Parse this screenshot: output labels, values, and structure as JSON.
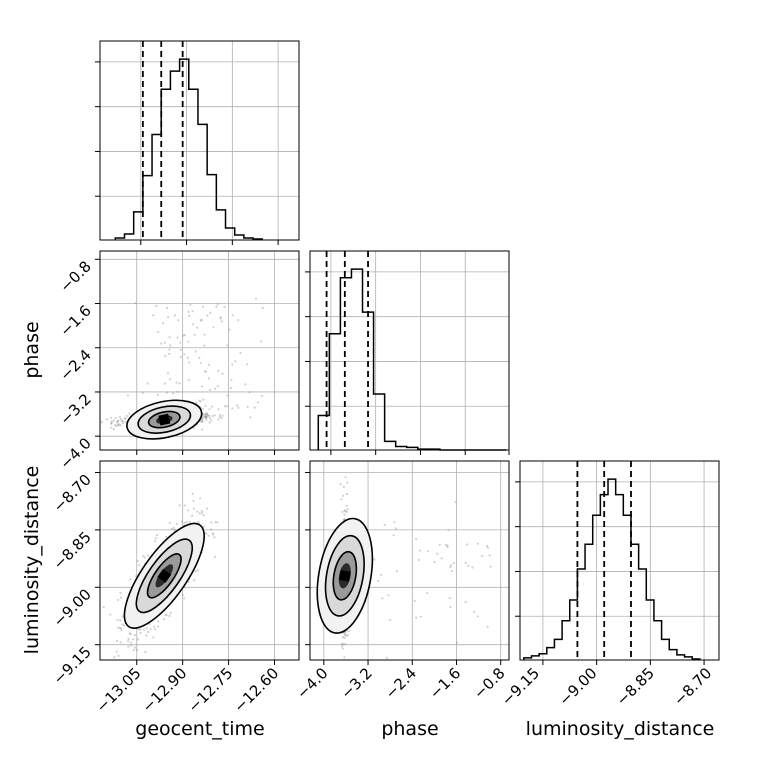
{
  "chart_data": {
    "type": "corner",
    "parameters": [
      "geocent_time",
      "phase",
      "luminosity_distance"
    ],
    "grid": true,
    "histograms": [
      {
        "parameter": "geocent_time",
        "xlim": [
          -13.17,
          -12.52
        ],
        "bin_edges": [
          -13.12,
          -13.09,
          -13.06,
          -13.03,
          -13.0,
          -12.97,
          -12.94,
          -12.91,
          -12.88,
          -12.85,
          -12.82,
          -12.79,
          -12.76,
          -12.73,
          -12.7,
          -12.67,
          -12.64
        ],
        "counts": [
          2,
          6,
          28,
          64,
          105,
          150,
          168,
          180,
          150,
          115,
          65,
          30,
          12,
          5,
          2,
          1
        ],
        "quantiles": [
          -13.03,
          -12.97,
          -12.9
        ]
      },
      {
        "parameter": "phase",
        "xlim": [
          -4.25,
          -0.65
        ],
        "bin_edges": [
          -4.1,
          -3.9,
          -3.7,
          -3.5,
          -3.3,
          -3.1,
          -2.9,
          -2.7,
          -2.5,
          -2.3,
          -2.1,
          -1.9,
          -1.7,
          -1.5,
          -1.3,
          -1.1,
          -0.9,
          -0.7
        ],
        "counts": [
          40,
          135,
          200,
          210,
          160,
          65,
          10,
          4,
          3,
          1,
          1,
          0,
          0,
          0,
          0,
          0,
          0
        ],
        "quantiles": [
          -3.95,
          -3.62,
          -3.2
        ]
      },
      {
        "parameter": "luminosity_distance",
        "xlim": [
          -9.19,
          -8.67
        ],
        "bin_edges": [
          -9.18,
          -9.16,
          -9.14,
          -9.12,
          -9.1,
          -9.08,
          -9.06,
          -9.04,
          -9.02,
          -9.0,
          -8.98,
          -8.96,
          -8.94,
          -8.92,
          -8.9,
          -8.88,
          -8.86,
          -8.84,
          -8.82,
          -8.8,
          -8.78,
          -8.76,
          -8.74,
          -8.72
        ],
        "counts": [
          2,
          4,
          6,
          12,
          20,
          38,
          58,
          88,
          112,
          140,
          160,
          175,
          160,
          140,
          112,
          88,
          58,
          38,
          20,
          10,
          5,
          3,
          1
        ],
        "quantiles": [
          -9.04,
          -8.97,
          -8.9
        ]
      }
    ],
    "pairs": [
      {
        "x": "geocent_time",
        "y": "phase",
        "xlim": [
          -13.17,
          -12.52
        ],
        "ylim": [
          -4.25,
          -0.65
        ],
        "peak": [
          -12.96,
          -3.7
        ],
        "yticks": [
          -4.0,
          -3.2,
          -2.4,
          -1.6,
          -0.8
        ],
        "ytick_labels": [
          "−4.0",
          "−3.2",
          "−2.4",
          "−1.6",
          "−0.8"
        ]
      },
      {
        "x": "geocent_time",
        "y": "luminosity_distance",
        "xlim": [
          -13.17,
          -12.52
        ],
        "ylim": [
          -9.19,
          -8.67
        ],
        "peak": [
          -12.96,
          -8.97
        ],
        "xticks": [
          -13.05,
          -12.9,
          -12.75,
          -12.6
        ],
        "xtick_labels": [
          "−13.05",
          "−12.90",
          "−12.75",
          "−12.60"
        ],
        "yticks": [
          -9.15,
          -9.0,
          -8.85,
          -8.7
        ],
        "ytick_labels": [
          "−9.15",
          "−9.00",
          "−8.85",
          "−8.70"
        ]
      },
      {
        "x": "phase",
        "y": "luminosity_distance",
        "xlim": [
          -4.25,
          -0.65
        ],
        "ylim": [
          -9.19,
          -8.67
        ],
        "peak": [
          -3.62,
          -8.97
        ],
        "xticks": [
          -4.0,
          -3.2,
          -2.4,
          -1.6,
          -0.8
        ],
        "xtick_labels": [
          "−4.0",
          "−3.2",
          "−2.4",
          "−1.6",
          "−0.8"
        ]
      }
    ],
    "diag_xticks": [
      {
        "values": [
          -9.15,
          -9.0,
          -8.85,
          -8.7
        ],
        "labels": [
          "−9.15",
          "−9.00",
          "−8.85",
          "−8.70"
        ]
      }
    ],
    "axis_labels": {
      "x": [
        "geocent_time",
        "phase",
        "luminosity_distance"
      ],
      "y": [
        "phase",
        "luminosity_distance"
      ]
    }
  }
}
